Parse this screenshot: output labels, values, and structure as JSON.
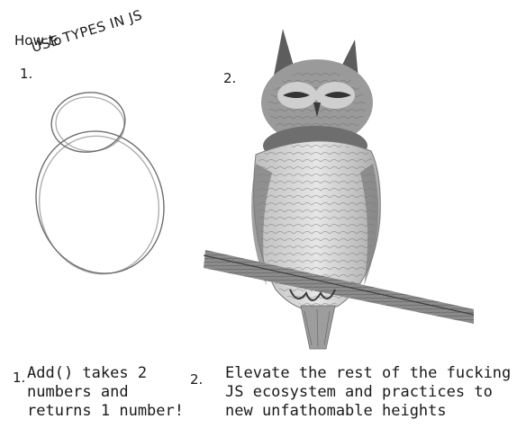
{
  "header": {
    "how_to": "How to",
    "step1_number": "1.",
    "title": "USE TYPES IN JS",
    "step2_number": "2."
  },
  "captions": {
    "caption1_number": "1.",
    "caption1_lines": [
      "Add() takes 2",
      "numbers and",
      "returns 1 number!"
    ],
    "caption2_number": "2.",
    "caption2_lines": [
      "Elevate the rest of the fucking",
      "JS ecosystem and practices to",
      "new unfathomable heights"
    ]
  },
  "colors": {
    "background": "#ffffff",
    "sketch_stroke": "#6d6d6d",
    "owl_light": "#d9d9d9",
    "owl_dark": "#4a4a4a"
  }
}
